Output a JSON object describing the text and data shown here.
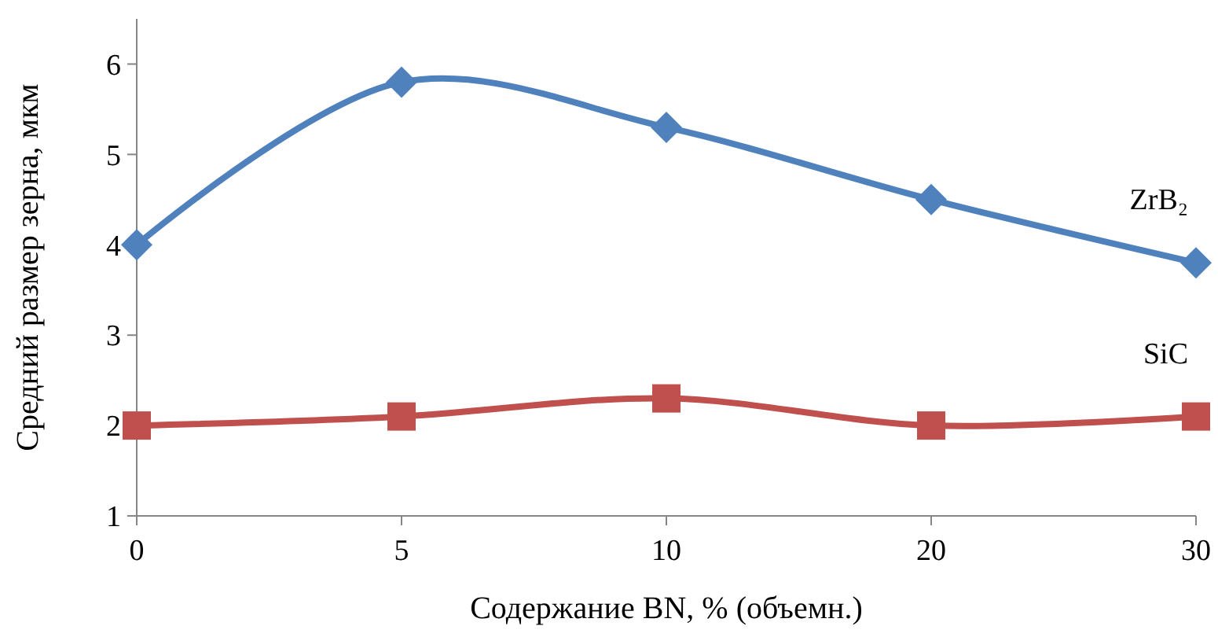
{
  "chart_data": {
    "type": "line",
    "xlabel": "Содержание BN, % (объемн.)",
    "ylabel": "Средний размер зерна, мкм",
    "categories": [
      "0",
      "5",
      "10",
      "20",
      "30"
    ],
    "series": [
      {
        "name": "ZrB₂",
        "color": "#4f81bd",
        "values": [
          4,
          5.8,
          5.3,
          4.5,
          3.8
        ],
        "marker": "diamond"
      },
      {
        "name": "SiC",
        "color": "#c0504d",
        "values": [
          2,
          2.1,
          2.3,
          2.0,
          2.1
        ],
        "marker": "square"
      }
    ],
    "ylim": [
      1,
      6.5
    ],
    "yticks": [
      1,
      2,
      3,
      4,
      5,
      6
    ],
    "grid": false,
    "legend": false
  }
}
